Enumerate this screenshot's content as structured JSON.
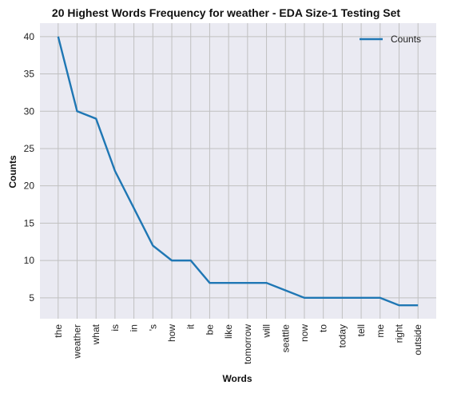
{
  "chart_data": {
    "type": "line",
    "title": "20 Highest Words Frequency for weather - EDA Size-1 Testing Set",
    "xlabel": "Words",
    "ylabel": "Counts",
    "categories": [
      "the",
      "weather",
      "what",
      "is",
      "in",
      "'s",
      "how",
      "it",
      "be",
      "like",
      "tomorrow",
      "will",
      "seattle",
      "now",
      "to",
      "today",
      "tell",
      "me",
      "right",
      "outside"
    ],
    "series": [
      {
        "name": "Counts",
        "values": [
          40,
          30,
          29,
          22,
          17,
          12,
          10,
          10,
          7,
          7,
          7,
          7,
          6,
          5,
          5,
          5,
          5,
          5,
          4,
          4
        ],
        "color": "#1f77b4"
      }
    ],
    "yticks": [
      5,
      10,
      15,
      20,
      25,
      30,
      35,
      40
    ],
    "ylim": [
      2.2,
      41.8
    ],
    "grid": true,
    "legend": "top-right",
    "background": "#eaeaf2",
    "grid_color": "#c0c0c0"
  }
}
